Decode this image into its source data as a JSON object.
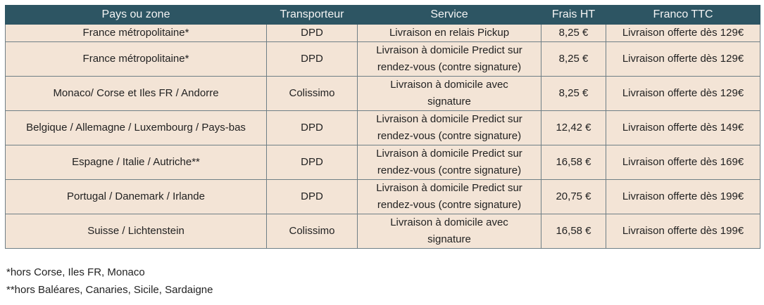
{
  "table": {
    "header": [
      "Pays ou zone",
      "Transporteur",
      "Service",
      "Frais HT",
      "Franco TTC"
    ],
    "rows": [
      [
        "France métropolitaine*",
        "DPD",
        [
          "Livraison en relais Pickup"
        ],
        "8,25 €",
        "Livraison offerte dès 129€"
      ],
      [
        "France métropolitaine*",
        "DPD",
        [
          "Livraison à domicile Predict sur",
          "rendez-vous (contre signature)"
        ],
        "8,25 €",
        "Livraison offerte dès 129€"
      ],
      [
        "Monaco/ Corse et Iles FR / Andorre",
        "Colissimo",
        [
          "Livraison à domicile avec",
          "signature"
        ],
        "8,25 €",
        "Livraison offerte dès 129€"
      ],
      [
        "Belgique / Allemagne / Luxembourg / Pays-bas",
        "DPD",
        [
          "Livraison à domicile Predict sur",
          "rendez-vous (contre signature)"
        ],
        "12,42 €",
        "Livraison offerte dès 149€"
      ],
      [
        "Espagne / Italie / Autriche**",
        "DPD",
        [
          "Livraison à domicile Predict sur",
          "rendez-vous (contre signature)"
        ],
        "16,58 €",
        "Livraison offerte dès 169€"
      ],
      [
        "Portugal / Danemark / Irlande",
        "DPD",
        [
          "Livraison à domicile Predict sur",
          "rendez-vous (contre signature)"
        ],
        "20,75 €",
        "Livraison offerte dès 199€"
      ],
      [
        "Suisse / Lichtenstein",
        "Colissimo",
        [
          "Livraison à domicile avec",
          "signature"
        ],
        "16,58 €",
        "Livraison offerte dès 199€"
      ]
    ]
  },
  "footnotes": [
    "*hors Corse, Iles FR, Monaco",
    "**hors Baléares, Canaries, Sicile, Sardaigne"
  ]
}
